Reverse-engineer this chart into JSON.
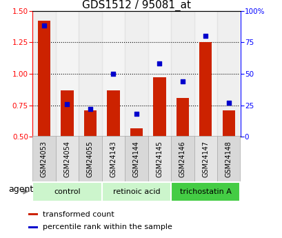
{
  "title": "GDS1512 / 95081_at",
  "categories": [
    "GSM24053",
    "GSM24054",
    "GSM24055",
    "GSM24143",
    "GSM24144",
    "GSM24145",
    "GSM24146",
    "GSM24147",
    "GSM24148"
  ],
  "red_values": [
    1.42,
    0.87,
    0.71,
    0.87,
    0.57,
    0.97,
    0.81,
    1.25,
    0.71
  ],
  "blue_values": [
    88,
    26,
    22,
    50,
    18,
    58,
    44,
    80,
    27
  ],
  "ylim_left": [
    0.5,
    1.5
  ],
  "ylim_right": [
    0,
    100
  ],
  "yticks_left": [
    0.5,
    0.75,
    1.0,
    1.25,
    1.5
  ],
  "yticks_right": [
    0,
    25,
    50,
    75,
    100
  ],
  "ytick_labels_right": [
    "0",
    "25",
    "50",
    "75",
    "100%"
  ],
  "bar_color": "#cc2200",
  "dot_color": "#0000cc",
  "bar_bottom": 0.5,
  "legend_items": [
    "transformed count",
    "percentile rank within the sample"
  ],
  "xlabel_agent": "agent",
  "group_defs": [
    {
      "start": 0,
      "end": 3,
      "label": "control",
      "color": "#ccf5cc"
    },
    {
      "start": 3,
      "end": 6,
      "label": "retinoic acid",
      "color": "#ccf5cc"
    },
    {
      "start": 6,
      "end": 9,
      "label": "trichostatin A",
      "color": "#44cc44"
    }
  ],
  "col_bg_even": "#d8d8d8",
  "col_bg_odd": "#e4e4e4",
  "title_fontsize": 11,
  "tick_fontsize": 7.5,
  "gsm_fontsize": 7
}
